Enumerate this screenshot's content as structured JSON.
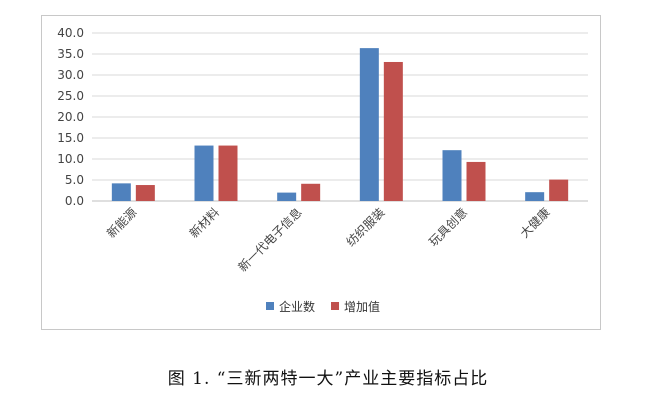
{
  "chart_data": {
    "type": "bar",
    "categories": [
      "新能源",
      "新材料",
      "新一代电子信息",
      "纺织服装",
      "玩具创意",
      "大健康"
    ],
    "series": [
      {
        "name": "企业数",
        "values": [
          4.2,
          13.2,
          2.0,
          36.4,
          12.1,
          2.1
        ],
        "color": "#4f81bd"
      },
      {
        "name": "增加值",
        "values": [
          3.8,
          13.2,
          4.1,
          33.1,
          9.3,
          5.1
        ],
        "color": "#c0504d"
      }
    ],
    "ylim": [
      0,
      40
    ],
    "yticks": [
      "0.0",
      "5.0",
      "10.0",
      "15.0",
      "20.0",
      "25.0",
      "30.0",
      "35.0",
      "40.0"
    ],
    "grid": true,
    "legend": "bottom"
  },
  "caption": "图 1. “三新两特一大”产业主要指标占比"
}
